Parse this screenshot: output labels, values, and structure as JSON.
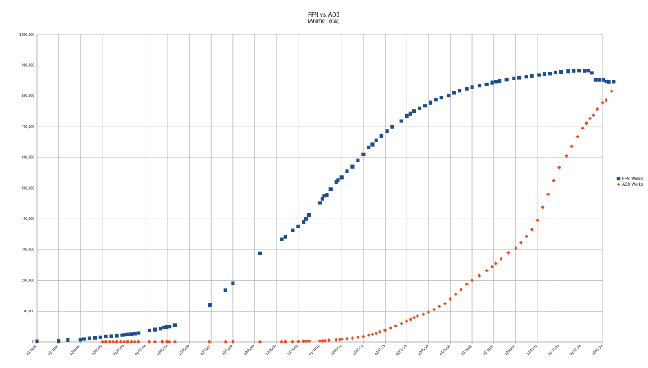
{
  "chart_data": {
    "type": "scatter",
    "title": "FFN vs. AO3",
    "subtitle": "(Anime Total)",
    "xlabel": "",
    "ylabel": "",
    "x_ticks": [
      "01/01/99",
      "01/01/00",
      "12/31/00",
      "12/31/01",
      "01/01/03",
      "01/01/04",
      "12/31/04",
      "12/31/05",
      "01/01/07",
      "01/01/08",
      "12/31/08",
      "12/31/09",
      "01/01/11",
      "01/01/12",
      "12/31/12",
      "12/31/13",
      "01/01/15",
      "01/01/16",
      "12/31/16",
      "01/01/18",
      "01/01/19",
      "01/01/20",
      "12/31/20",
      "12/31/21",
      "01/01/23",
      "01/01/24",
      "12/31/24"
    ],
    "xlim": [
      "1999-01-01",
      "2024-12-31"
    ],
    "ylim": [
      0,
      1000000
    ],
    "y_ticks": [
      0,
      100000,
      200000,
      300000,
      400000,
      500000,
      600000,
      700000,
      800000,
      900000,
      1000000
    ],
    "y_tick_labels": [
      "0",
      "100,000",
      "200,000",
      "300,000",
      "400,000",
      "500,000",
      "600,000",
      "700,000",
      "800,000",
      "900,000",
      "1,000,000"
    ],
    "grid": true,
    "legend": "right",
    "series": [
      {
        "name": "FFN Works",
        "color": "#1f4e8c",
        "marker": "square",
        "points": [
          [
            "1999-01-01",
            2000
          ],
          [
            "2000-01-01",
            3000
          ],
          [
            "2000-06-01",
            6000
          ],
          [
            "2001-01-01",
            7000
          ],
          [
            "2001-03-01",
            9000
          ],
          [
            "2001-06-01",
            11000
          ],
          [
            "2001-09-01",
            13000
          ],
          [
            "2001-12-01",
            15000
          ],
          [
            "2002-03-01",
            17000
          ],
          [
            "2002-06-01",
            18000
          ],
          [
            "2002-09-01",
            20000
          ],
          [
            "2002-12-01",
            22000
          ],
          [
            "2003-01-15",
            23000
          ],
          [
            "2003-03-01",
            24000
          ],
          [
            "2003-05-01",
            25000
          ],
          [
            "2003-07-01",
            27000
          ],
          [
            "2003-09-01",
            29000
          ],
          [
            "2004-03-01",
            37000
          ],
          [
            "2004-06-01",
            40000
          ],
          [
            "2004-09-01",
            43000
          ],
          [
            "2004-11-01",
            46000
          ],
          [
            "2004-12-15",
            48000
          ],
          [
            "2005-02-01",
            50000
          ],
          [
            "2005-05-01",
            54000
          ],
          [
            "2006-12-01",
            119000
          ],
          [
            "2006-12-10",
            121000
          ],
          [
            "2007-09-01",
            168000
          ],
          [
            "2008-01-01",
            190000
          ],
          [
            "2009-04-01",
            288000
          ],
          [
            "2010-04-01",
            333000
          ],
          [
            "2010-06-01",
            342000
          ],
          [
            "2010-10-01",
            362000
          ],
          [
            "2011-01-01",
            375000
          ],
          [
            "2011-04-01",
            390000
          ],
          [
            "2011-05-15",
            400000
          ],
          [
            "2011-07-01",
            413000
          ],
          [
            "2012-01-01",
            452000
          ],
          [
            "2012-02-15",
            465000
          ],
          [
            "2012-03-15",
            475000
          ],
          [
            "2012-05-01",
            478000
          ],
          [
            "2012-07-01",
            497000
          ],
          [
            "2012-10-01",
            520000
          ],
          [
            "2012-11-01",
            526000
          ],
          [
            "2013-01-01",
            535000
          ],
          [
            "2013-04-01",
            555000
          ],
          [
            "2013-07-01",
            570000
          ],
          [
            "2013-10-01",
            590000
          ],
          [
            "2014-01-01",
            610000
          ],
          [
            "2014-04-01",
            632000
          ],
          [
            "2014-06-01",
            642000
          ],
          [
            "2014-08-01",
            655000
          ],
          [
            "2014-11-01",
            670000
          ],
          [
            "2015-02-01",
            685000
          ],
          [
            "2015-05-01",
            700000
          ],
          [
            "2015-10-01",
            718000
          ],
          [
            "2016-01-01",
            735000
          ],
          [
            "2016-03-01",
            742000
          ],
          [
            "2016-05-01",
            750000
          ],
          [
            "2016-08-01",
            760000
          ],
          [
            "2016-11-01",
            768000
          ],
          [
            "2017-02-01",
            778000
          ],
          [
            "2017-05-01",
            788000
          ],
          [
            "2017-08-01",
            795000
          ],
          [
            "2017-12-01",
            802000
          ],
          [
            "2018-03-01",
            810000
          ],
          [
            "2018-06-01",
            817000
          ],
          [
            "2018-10-01",
            823000
          ],
          [
            "2019-01-01",
            828000
          ],
          [
            "2019-05-01",
            833000
          ],
          [
            "2019-09-01",
            838000
          ],
          [
            "2019-12-01",
            843000
          ],
          [
            "2020-02-01",
            846000
          ],
          [
            "2020-04-01",
            849000
          ],
          [
            "2020-08-01",
            853000
          ],
          [
            "2020-12-01",
            856000
          ],
          [
            "2021-03-01",
            859000
          ],
          [
            "2021-07-01",
            862000
          ],
          [
            "2021-10-01",
            865000
          ],
          [
            "2022-02-01",
            868000
          ],
          [
            "2022-05-01",
            871000
          ],
          [
            "2022-08-01",
            873000
          ],
          [
            "2022-11-01",
            876000
          ],
          [
            "2023-02-01",
            878000
          ],
          [
            "2023-06-01",
            880000
          ],
          [
            "2023-09-01",
            881000
          ],
          [
            "2023-12-01",
            882000
          ],
          [
            "2024-03-01",
            881000
          ],
          [
            "2024-05-01",
            882000
          ],
          [
            "2024-07-01",
            875000
          ],
          [
            "2024-09-01",
            852000
          ],
          [
            "2024-11-01",
            852000
          ],
          [
            "2025-01-15",
            852000
          ],
          [
            "2025-03-01",
            847000
          ],
          [
            "2025-04-15",
            845000
          ],
          [
            "2025-07-01",
            846000
          ]
        ]
      },
      {
        "name": "AO3 Works",
        "color": "#f24b1c",
        "marker": "diamond",
        "points": [
          [
            "2002-01-01",
            0
          ],
          [
            "2002-03-01",
            0
          ],
          [
            "2002-05-01",
            0
          ],
          [
            "2002-07-01",
            0
          ],
          [
            "2002-09-01",
            0
          ],
          [
            "2002-11-01",
            0
          ],
          [
            "2003-01-01",
            0
          ],
          [
            "2003-03-01",
            0
          ],
          [
            "2003-05-01",
            0
          ],
          [
            "2003-07-01",
            0
          ],
          [
            "2003-09-01",
            0
          ],
          [
            "2004-03-01",
            0
          ],
          [
            "2004-06-01",
            0
          ],
          [
            "2004-10-01",
            0
          ],
          [
            "2004-12-15",
            0
          ],
          [
            "2005-02-01",
            0
          ],
          [
            "2005-05-01",
            0
          ],
          [
            "2006-12-01",
            0
          ],
          [
            "2007-09-01",
            0
          ],
          [
            "2008-01-01",
            0
          ],
          [
            "2009-04-01",
            0
          ],
          [
            "2010-04-01",
            0
          ],
          [
            "2010-06-01",
            0
          ],
          [
            "2010-10-01",
            0
          ],
          [
            "2011-01-01",
            1000
          ],
          [
            "2011-04-01",
            2000
          ],
          [
            "2011-05-15",
            2000
          ],
          [
            "2011-07-01",
            2500
          ],
          [
            "2012-01-01",
            3000
          ],
          [
            "2012-02-15",
            3500
          ],
          [
            "2012-04-01",
            4000
          ],
          [
            "2012-06-01",
            5000
          ],
          [
            "2012-10-01",
            6000
          ],
          [
            "2012-12-01",
            7000
          ],
          [
            "2013-01-01",
            8000
          ],
          [
            "2013-04-01",
            10000
          ],
          [
            "2013-07-01",
            12000
          ],
          [
            "2013-10-01",
            15000
          ],
          [
            "2014-01-01",
            18000
          ],
          [
            "2014-04-01",
            22000
          ],
          [
            "2014-06-01",
            25000
          ],
          [
            "2014-08-01",
            28000
          ],
          [
            "2014-10-01",
            33000
          ],
          [
            "2015-01-01",
            38000
          ],
          [
            "2015-04-01",
            45000
          ],
          [
            "2015-07-01",
            52000
          ],
          [
            "2015-10-01",
            60000
          ],
          [
            "2016-01-01",
            68000
          ],
          [
            "2016-03-01",
            73000
          ],
          [
            "2016-05-01",
            78000
          ],
          [
            "2016-07-01",
            84000
          ],
          [
            "2016-10-01",
            90000
          ],
          [
            "2017-01-01",
            97000
          ],
          [
            "2017-04-01",
            105000
          ],
          [
            "2017-07-01",
            115000
          ],
          [
            "2017-10-01",
            125000
          ],
          [
            "2018-01-01",
            140000
          ],
          [
            "2018-04-01",
            155000
          ],
          [
            "2018-07-01",
            170000
          ],
          [
            "2018-10-01",
            187000
          ],
          [
            "2019-01-01",
            200000
          ],
          [
            "2019-05-01",
            215000
          ],
          [
            "2019-09-01",
            232000
          ],
          [
            "2019-12-01",
            245000
          ],
          [
            "2020-02-01",
            255000
          ],
          [
            "2020-05-01",
            270000
          ],
          [
            "2020-09-01",
            290000
          ],
          [
            "2021-01-01",
            305000
          ],
          [
            "2021-04-01",
            322000
          ],
          [
            "2021-07-01",
            343000
          ],
          [
            "2021-10-01",
            365000
          ],
          [
            "2022-01-01",
            395000
          ],
          [
            "2022-04-01",
            437000
          ],
          [
            "2022-07-01",
            480000
          ],
          [
            "2022-10-01",
            525000
          ],
          [
            "2023-01-01",
            567000
          ],
          [
            "2023-05-01",
            605000
          ],
          [
            "2023-08-01",
            636000
          ],
          [
            "2023-11-01",
            668000
          ],
          [
            "2024-02-01",
            695000
          ],
          [
            "2024-04-01",
            712000
          ],
          [
            "2024-06-01",
            727000
          ],
          [
            "2024-08-01",
            737000
          ],
          [
            "2024-10-01",
            757000
          ],
          [
            "2025-01-01",
            778000
          ],
          [
            "2025-03-01",
            786000
          ],
          [
            "2025-06-01",
            815000
          ]
        ]
      }
    ]
  }
}
